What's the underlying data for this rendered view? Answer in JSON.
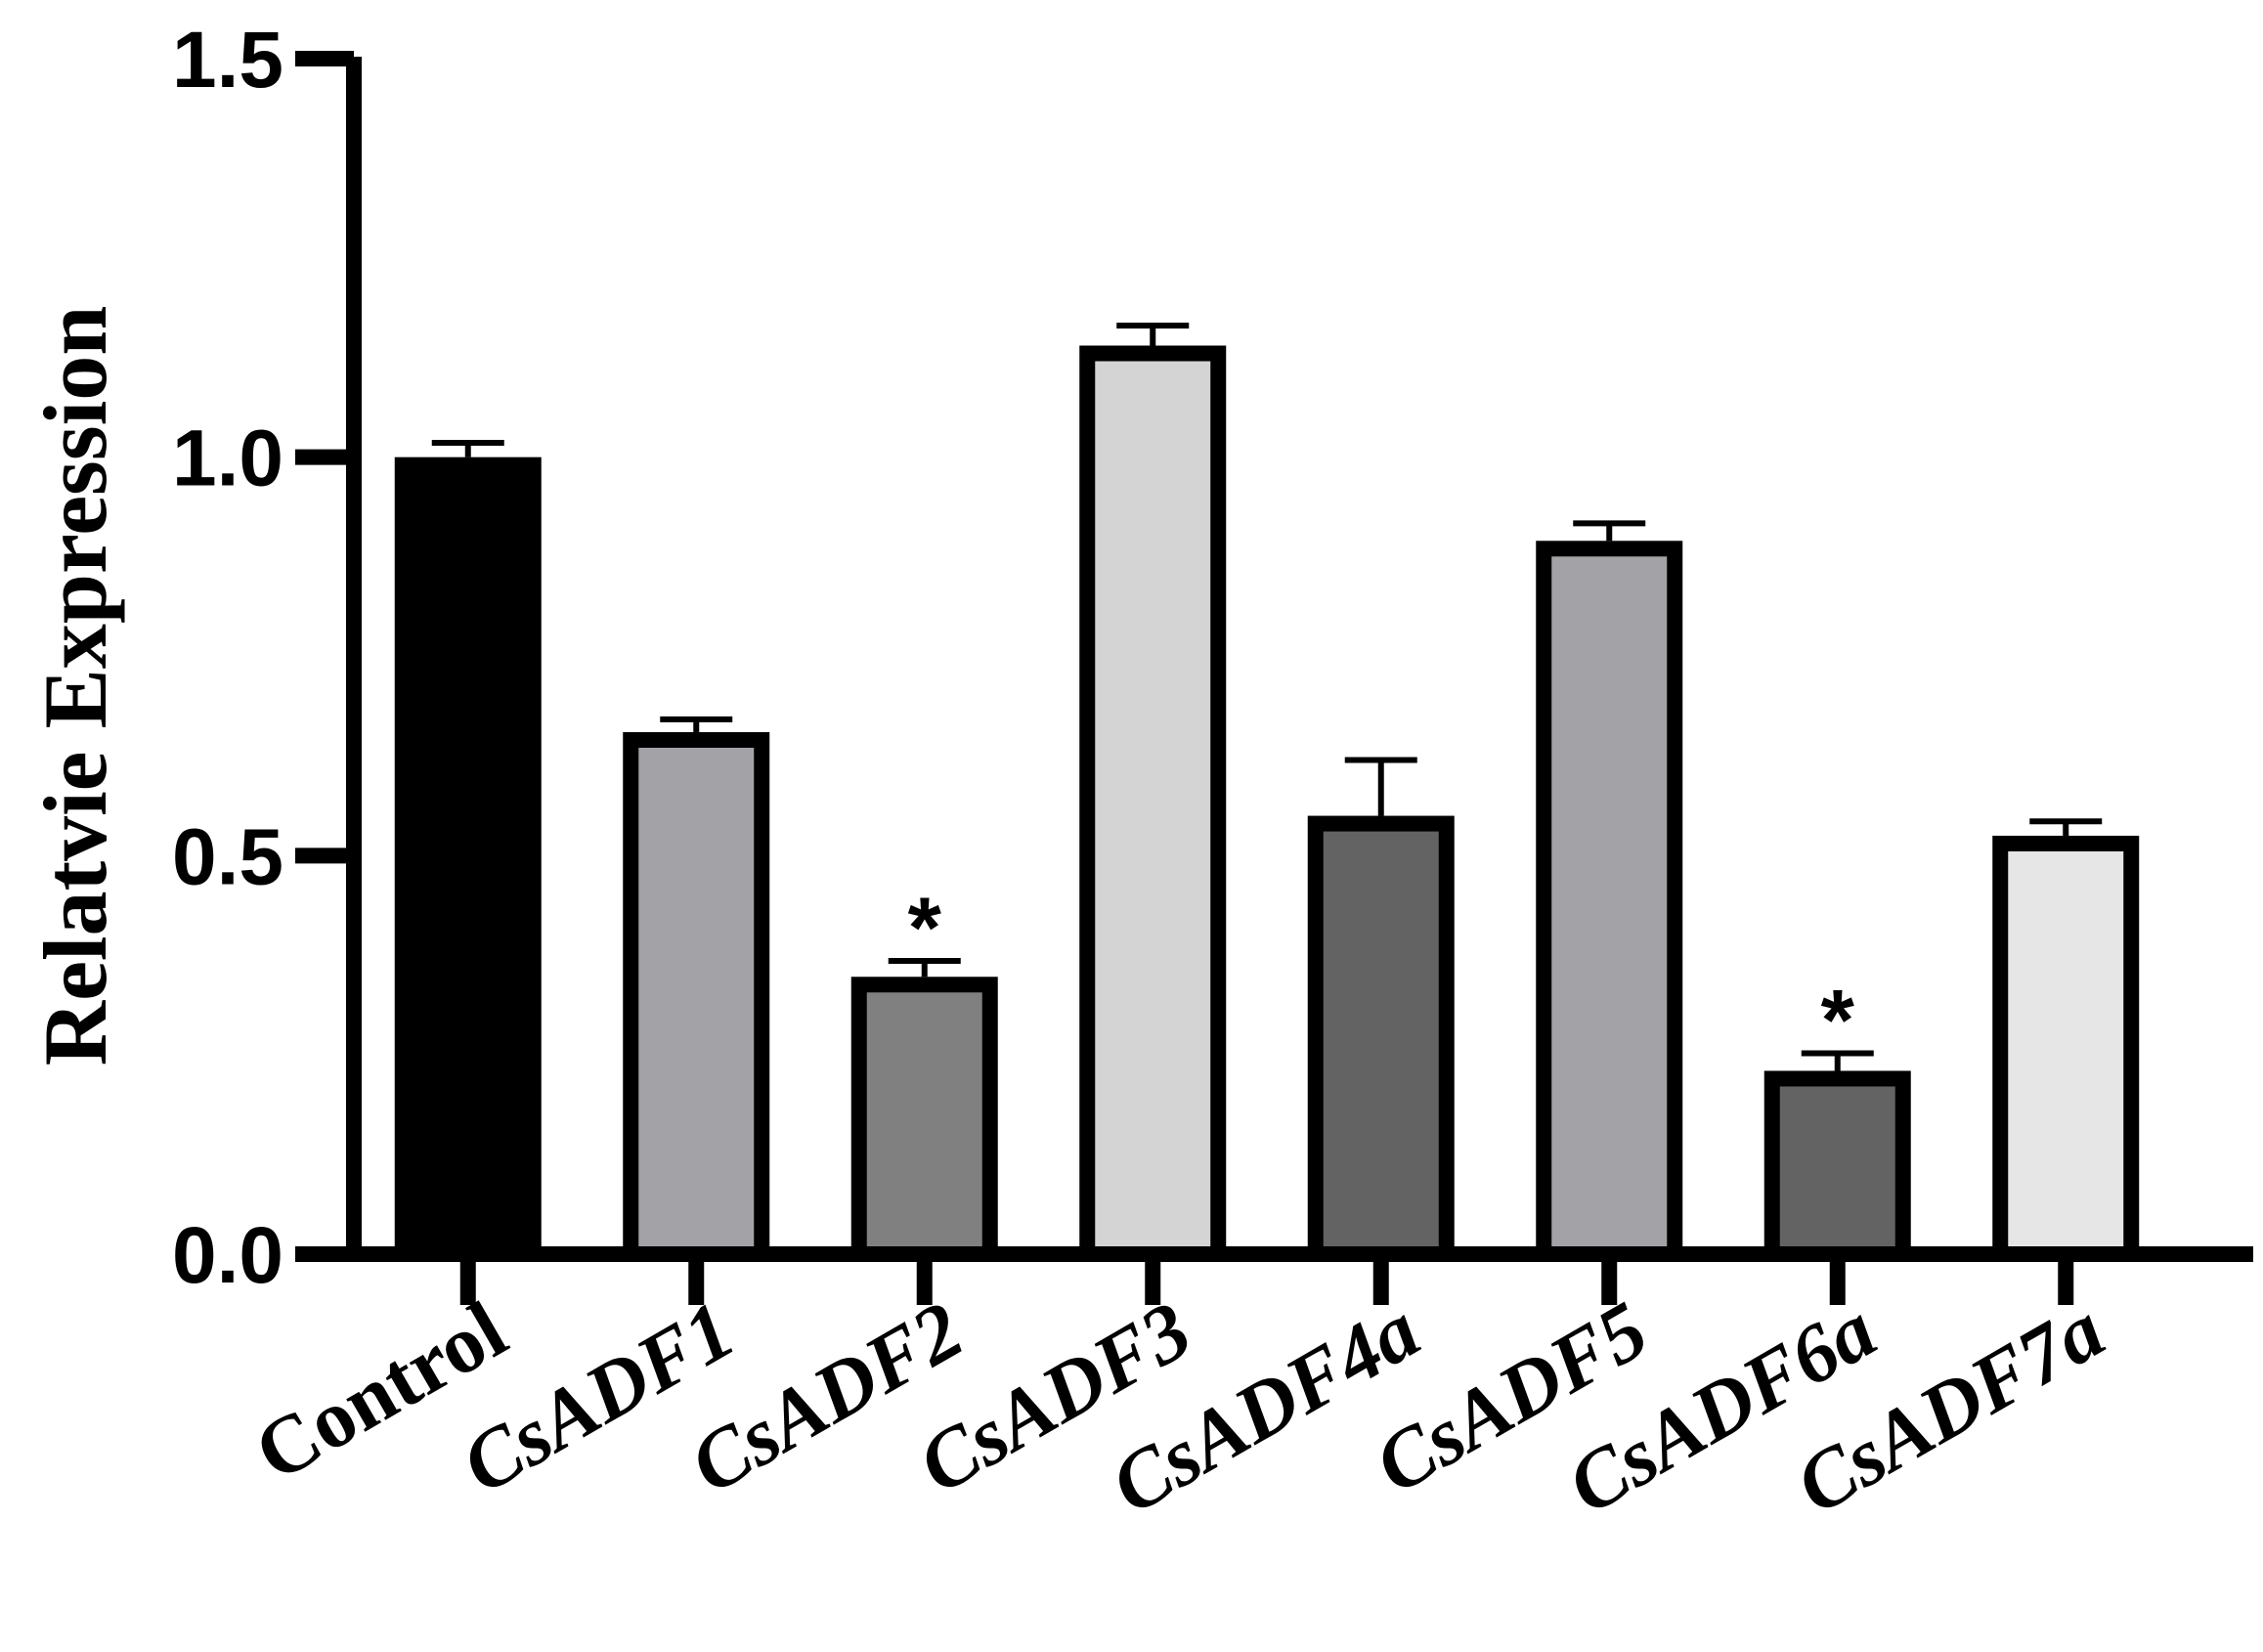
{
  "chart_data": {
    "type": "bar",
    "title": "",
    "xlabel": "",
    "ylabel": "Relatvie Expression",
    "ylim": [
      0,
      1.5
    ],
    "yticks": [
      "0.0",
      "0.5",
      "1.0",
      "1.5"
    ],
    "grid": false,
    "legend": "none",
    "categories": [
      "Control",
      "CsADF1",
      "CsADF2",
      "CsADF3",
      "CsADF4a",
      "CsADF5",
      "CsADF6a",
      "CsADF7a"
    ],
    "category_italic": [
      false,
      true,
      true,
      true,
      true,
      true,
      true,
      true
    ],
    "values": [
      1.0,
      0.655,
      0.348,
      1.14,
      0.55,
      0.895,
      0.23,
      0.525
    ],
    "errors": [
      0.018,
      0.016,
      0.02,
      0.025,
      0.07,
      0.022,
      0.022,
      0.018
    ],
    "significance": [
      "",
      "",
      "*",
      "",
      "",
      "",
      "*",
      ""
    ],
    "colors": [
      "#000000",
      "#a3a3a7",
      "#808080",
      "#d4d4d4",
      "#636363",
      "#a3a3a7",
      "#636363",
      "#e6e6e6"
    ]
  }
}
